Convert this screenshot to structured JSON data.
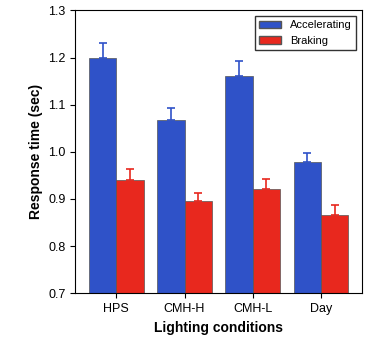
{
  "chart_data": {
    "type": "bar",
    "x_label": "Lighting conditions",
    "y_label": "Response time (sec)",
    "categories": [
      "HPS",
      "CMH-H",
      "CMH-L",
      "Day"
    ],
    "series": [
      {
        "name": "Accelerating",
        "color": "#2f52c8",
        "values": [
          1.2,
          1.068,
          1.16,
          0.978
        ],
        "errors": [
          0.03,
          0.025,
          0.033,
          0.02
        ]
      },
      {
        "name": "Braking",
        "color": "#e8281e",
        "values": [
          0.941,
          0.895,
          0.921,
          0.865
        ],
        "errors": [
          0.023,
          0.018,
          0.022,
          0.022
        ]
      }
    ],
    "ylim": [
      0.7,
      1.3
    ],
    "yticks": [
      0.7,
      0.8,
      0.9,
      {
        "value": 1.0,
        "label": "1.0"
      },
      1.1,
      1.2,
      1.3
    ],
    "legend": "upper right",
    "grid": false
  }
}
